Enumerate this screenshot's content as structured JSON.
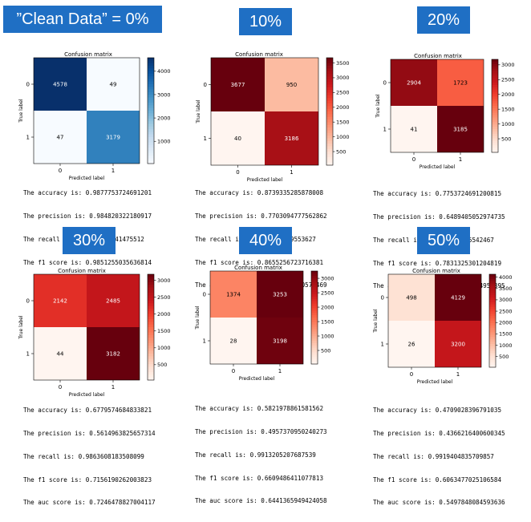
{
  "panels": [
    {
      "heading": "”Clean Data” = 0%",
      "chart_data": {
        "type": "heatmap",
        "title": "Confusion matrix",
        "xlabel": "Predicted label",
        "ylabel": "True label",
        "x_ticks": [
          "0",
          "1"
        ],
        "y_ticks": [
          "0",
          "1"
        ],
        "values": [
          [
            4578,
            49
          ],
          [
            47,
            3179
          ]
        ],
        "colormap": "Blues",
        "colorbar_ticks": [
          1000,
          2000,
          3000,
          4000
        ],
        "colorbar_range": [
          47,
          4578
        ]
      },
      "metrics": [
        "The accuracy is: 0.9877753724691201",
        "The precision is: 0.984820322180917",
        "The recall is: 0.9854308741475512",
        "The f1 score is: 0.9851255035636814"
      ]
    },
    {
      "heading": "10%",
      "chart_data": {
        "type": "heatmap",
        "title": "Confusion matrix",
        "xlabel": "Predicted label",
        "ylabel": "True label",
        "x_ticks": [
          "0",
          "1"
        ],
        "y_ticks": [
          "0",
          "1"
        ],
        "values": [
          [
            3677,
            950
          ],
          [
            40,
            3186
          ]
        ],
        "colormap": "Reds",
        "colorbar_ticks": [
          500,
          1000,
          1500,
          2000,
          2500,
          3000,
          3500
        ],
        "colorbar_range": [
          40,
          3677
        ]
      },
      "metrics": [
        "The accuracy is: 0.8739335285878008",
        "The precision is: 0.7703094777562862",
        "The recall is: 0.9876007439553627",
        "The f1 score is: 0.8655256723716381",
        "The auc score is: 0.8911420620576469"
      ]
    },
    {
      "heading": "20%",
      "chart_data": {
        "type": "heatmap",
        "title": "Confusion matrix",
        "xlabel": "Predicted label",
        "ylabel": "True label",
        "x_ticks": [
          "0",
          "1"
        ],
        "y_ticks": [
          "0",
          "1"
        ],
        "values": [
          [
            2904,
            1723
          ],
          [
            41,
            3185
          ]
        ],
        "colormap": "Reds",
        "colorbar_ticks": [
          500,
          1000,
          1500,
          2000,
          2500,
          3000
        ],
        "colorbar_range": [
          41,
          3185
        ]
      },
      "metrics": [
        "The accuracy is: 0.7753724691200815",
        "The precision is: 0.6489405052974735",
        "The recall is: 0.9872907625542467",
        "The f1 score is: 0.7831325301204819",
        "The auc score is: 0.8074556254958395"
      ]
    },
    {
      "heading": "30%",
      "chart_data": {
        "type": "heatmap",
        "title": "Confusion matrix",
        "xlabel": "Predicted label",
        "ylabel": "True label",
        "x_ticks": [
          "0",
          "1"
        ],
        "y_ticks": [
          "0",
          "1"
        ],
        "values": [
          [
            2142,
            2485
          ],
          [
            44,
            3182
          ]
        ],
        "colormap": "Reds",
        "colorbar_ticks": [
          500,
          1000,
          1500,
          2000,
          2500,
          3000
        ],
        "colorbar_range": [
          44,
          3182
        ]
      },
      "metrics": [
        "The accuracy is: 0.6779574684833821",
        "The precision is: 0.5614963825657314",
        "The recall is: 0.9863608183508099",
        "The f1 score is: 0.7156190262003823",
        "The auc score is: 0.7246478827004117"
      ]
    },
    {
      "heading": "40%",
      "chart_data": {
        "type": "heatmap",
        "title": "Confusion matrix",
        "xlabel": "Predicted label",
        "ylabel": "True label",
        "x_ticks": [
          "0",
          "1"
        ],
        "y_ticks": [
          "0",
          "1"
        ],
        "values": [
          [
            1374,
            3253
          ],
          [
            28,
            3198
          ]
        ],
        "colormap": "Reds",
        "colorbar_ticks": [
          500,
          1000,
          1500,
          2000,
          2500,
          3000
        ],
        "colorbar_range": [
          28,
          3253
        ]
      },
      "metrics": [
        "The accuracy is: 0.5821978861581562",
        "The precision is: 0.4957370950240273",
        "The recall is: 0.9913205207687539",
        "The f1 score is: 0.6609486411077813",
        "The auc score is: 0.6441365949424058"
      ]
    },
    {
      "heading": "50%",
      "chart_data": {
        "type": "heatmap",
        "title": "Confusion matrix",
        "xlabel": "Predicted label",
        "ylabel": "True label",
        "x_ticks": [
          "0",
          "1"
        ],
        "y_ticks": [
          "0",
          "1"
        ],
        "values": [
          [
            498,
            4129
          ],
          [
            26,
            3200
          ]
        ],
        "colormap": "Reds",
        "colorbar_ticks": [
          500,
          1000,
          1500,
          2000,
          2500,
          3000,
          3500,
          4000
        ],
        "colorbar_range": [
          26,
          4129
        ]
      },
      "metrics": [
        "The accuracy is: 0.4709028396791035",
        "The precision is: 0.4366216400600345",
        "The recall is: 0.9919404835709857",
        "The f1 score is: 0.6063477025106584",
        "The auc score is: 0.5497848084593636"
      ]
    }
  ]
}
